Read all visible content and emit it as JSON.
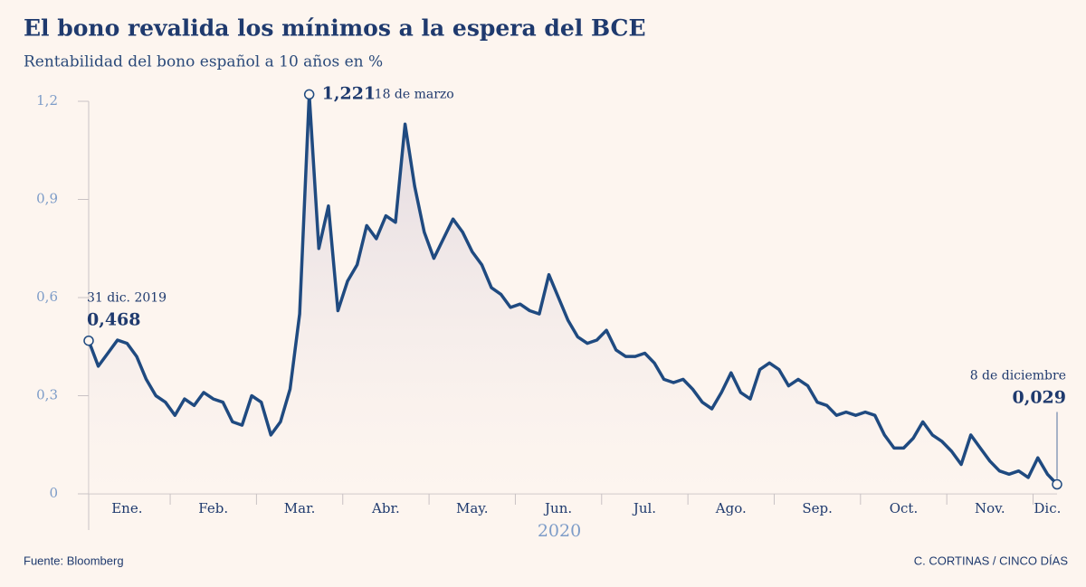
{
  "chart_data": {
    "type": "line",
    "title": "El bono revalida los mínimos a la espera del BCE",
    "subtitle": "Rentabilidad del bono español a 10 años en %",
    "xlabel": "2020",
    "source": "Fuente: Bloomberg",
    "credit": "C. CORTINAS / CINCO DÍAS",
    "annotations": [
      "31 dic. 2019",
      "18 de marzo",
      "8 de diciembre"
    ],
    "categories": [
      null,
      null,
      null,
      null,
      "Ene.",
      null,
      null,
      null,
      null,
      null,
      null,
      null,
      null,
      "Feb.",
      null,
      null,
      null,
      null,
      null,
      null,
      null,
      null,
      "Mar.",
      null,
      null,
      null,
      null,
      null,
      null,
      null,
      null,
      "Abr.",
      null,
      null,
      null,
      null,
      null,
      null,
      null,
      null,
      "May.",
      null,
      null,
      null,
      null,
      null,
      null,
      null,
      null,
      "Jun.",
      null,
      null,
      null,
      null,
      null,
      null,
      null,
      null,
      "Jul.",
      null,
      null,
      null,
      null,
      null,
      null,
      null,
      null,
      "Ago.",
      null,
      null,
      null,
      null,
      null,
      null,
      null,
      null,
      "Sep.",
      null,
      null,
      null,
      null,
      null,
      null,
      null,
      null,
      "Oct.",
      null,
      null,
      null,
      null,
      null,
      null,
      null,
      null,
      "Nov.",
      null,
      null,
      null,
      null,
      null,
      "Dic.",
      null
    ],
    "series": [
      {
        "name": "Rentabilidad",
        "color": "#1f4a80",
        "values": [
          0.468,
          0.39,
          0.43,
          0.47,
          0.46,
          0.42,
          0.35,
          0.3,
          0.28,
          0.24,
          0.29,
          0.27,
          0.31,
          0.29,
          0.28,
          0.22,
          0.21,
          0.3,
          0.28,
          0.18,
          0.22,
          0.32,
          0.55,
          1.221,
          0.75,
          0.88,
          0.56,
          0.65,
          0.7,
          0.82,
          0.78,
          0.85,
          0.83,
          1.13,
          0.94,
          0.8,
          0.72,
          0.78,
          0.84,
          0.8,
          0.74,
          0.7,
          0.63,
          0.61,
          0.57,
          0.58,
          0.56,
          0.55,
          0.67,
          0.6,
          0.53,
          0.48,
          0.46,
          0.47,
          0.5,
          0.44,
          0.42,
          0.42,
          0.43,
          0.4,
          0.35,
          0.34,
          0.35,
          0.32,
          0.28,
          0.26,
          0.31,
          0.37,
          0.31,
          0.29,
          0.38,
          0.4,
          0.38,
          0.33,
          0.35,
          0.33,
          0.28,
          0.27,
          0.24,
          0.25,
          0.24,
          0.25,
          0.24,
          0.18,
          0.14,
          0.14,
          0.17,
          0.22,
          0.18,
          0.16,
          0.13,
          0.09,
          0.18,
          0.14,
          0.1,
          0.07,
          0.06,
          0.07,
          0.05,
          0.11,
          0.06,
          0.029
        ],
        "value_labels": [
          "0,468",
          null,
          null,
          null,
          null,
          null,
          null,
          null,
          null,
          null,
          null,
          null,
          null,
          null,
          null,
          null,
          null,
          null,
          null,
          null,
          null,
          null,
          null,
          "1,221",
          null,
          null,
          null,
          null,
          null,
          null,
          null,
          null,
          null,
          null,
          null,
          null,
          null,
          null,
          null,
          null,
          null,
          null,
          null,
          null,
          null,
          null,
          null,
          null,
          null,
          null,
          null,
          null,
          null,
          null,
          null,
          null,
          null,
          null,
          null,
          null,
          null,
          null,
          null,
          null,
          null,
          null,
          null,
          null,
          null,
          null,
          null,
          null,
          null,
          null,
          null,
          null,
          null,
          null,
          null,
          null,
          null,
          null,
          null,
          null,
          null,
          null,
          null,
          null,
          null,
          null,
          null,
          null,
          null,
          null,
          null,
          null,
          null,
          null,
          null,
          null,
          null,
          "0,029"
        ]
      }
    ],
    "ylim": [
      0,
      1.2
    ],
    "yticks": [
      0,
      {
        "value": 0.3,
        "label": "0,3"
      },
      {
        "value": 0.6,
        "label": "0,6"
      },
      {
        "value": 0.9,
        "label": "0,9"
      },
      {
        "value": 1.2,
        "label": "1,2"
      }
    ]
  }
}
